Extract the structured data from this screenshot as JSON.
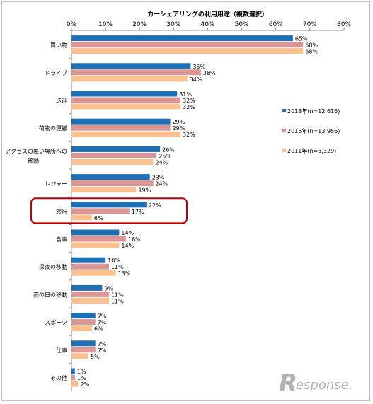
{
  "chart_data": {
    "type": "bar",
    "orientation": "horizontal",
    "title": "カーシェアリングの利用用途（複数選択）",
    "xlabel": "",
    "ylabel": "",
    "xlim": [
      0,
      80
    ],
    "x_ticks": [
      "0%",
      "10%",
      "20%",
      "30%",
      "40%",
      "50%",
      "60%",
      "70%",
      "80%"
    ],
    "grid": false,
    "legend_position": "right",
    "categories": [
      [
        "買い物"
      ],
      [
        "ドライブ"
      ],
      [
        "送迎"
      ],
      [
        "荷物の運搬"
      ],
      [
        "アクセスの悪い場所への",
        "移動"
      ],
      [
        "レジャー"
      ],
      [
        "旅行"
      ],
      [
        "食事"
      ],
      [
        "深夜の移動"
      ],
      [
        "雨の日の移動"
      ],
      [
        "スポーツ"
      ],
      [
        "仕事"
      ],
      [
        "その他"
      ]
    ],
    "series": [
      {
        "name": "2018年(n=12,616)",
        "color": "#1f6fb5",
        "values": [
          65,
          35,
          31,
          29,
          26,
          23,
          22,
          14,
          10,
          9,
          7,
          7,
          1
        ]
      },
      {
        "name": "2015年(n=13,956)",
        "color": "#d99694",
        "values": [
          68,
          38,
          32,
          29,
          25,
          24,
          17,
          16,
          11,
          11,
          7,
          7,
          1
        ]
      },
      {
        "name": "2011年(n=5,329)",
        "color": "#fac090",
        "values": [
          68,
          34,
          32,
          32,
          24,
          19,
          6,
          14,
          13,
          11,
          6,
          5,
          2
        ]
      }
    ],
    "highlight": {
      "category_index": 6,
      "color": "#c00000"
    },
    "value_suffix": "%"
  },
  "logo": {
    "text": "esponse.",
    "icon": "response-r-icon",
    "color": "#b3b3b3"
  }
}
